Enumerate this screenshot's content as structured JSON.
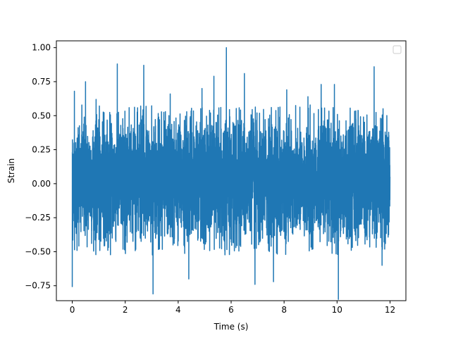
{
  "chart_data": {
    "type": "line",
    "title": "",
    "xlabel": "Time (s)",
    "ylabel": "Strain",
    "xlim": [
      -0.6,
      12.6
    ],
    "ylim": [
      -0.86,
      1.05
    ],
    "xticks": [
      0,
      2,
      4,
      6,
      8,
      10,
      12
    ],
    "xtick_labels": [
      "0",
      "2",
      "4",
      "6",
      "8",
      "10",
      "12"
    ],
    "yticks": [
      -0.75,
      -0.5,
      -0.25,
      0.0,
      0.25,
      0.5,
      0.75,
      1.0
    ],
    "ytick_labels": [
      "−0.75",
      "−0.50",
      "−0.25",
      "0.00",
      "0.25",
      "0.50",
      "0.75",
      "1.00"
    ],
    "grid": false,
    "legend": {
      "location": "top-right",
      "entries": []
    },
    "series": [
      {
        "color": "#1f77b4",
        "x_start": 0.0,
        "x_end": 12.0,
        "typical_range": [
          -0.45,
          0.5
        ],
        "notable_points": [
          {
            "x": 0.0,
            "y": -0.76
          },
          {
            "x": 0.08,
            "y": 0.68
          },
          {
            "x": 0.5,
            "y": 0.75
          },
          {
            "x": 0.9,
            "y": 0.62
          },
          {
            "x": 1.7,
            "y": 0.88
          },
          {
            "x": 2.7,
            "y": 0.87
          },
          {
            "x": 3.05,
            "y": -0.81
          },
          {
            "x": 3.7,
            "y": 0.66
          },
          {
            "x": 4.4,
            "y": -0.7
          },
          {
            "x": 4.9,
            "y": 0.7
          },
          {
            "x": 5.35,
            "y": 0.79
          },
          {
            "x": 5.82,
            "y": 1.0
          },
          {
            "x": 6.5,
            "y": 0.81
          },
          {
            "x": 6.9,
            "y": -0.74
          },
          {
            "x": 7.6,
            "y": -0.72
          },
          {
            "x": 8.1,
            "y": 0.69
          },
          {
            "x": 8.9,
            "y": 0.64
          },
          {
            "x": 9.4,
            "y": 0.73
          },
          {
            "x": 9.9,
            "y": 0.73
          },
          {
            "x": 10.05,
            "y": -0.85
          },
          {
            "x": 11.4,
            "y": 0.86
          },
          {
            "x": 11.7,
            "y": -0.6
          },
          {
            "x": 12.0,
            "y": 0.05
          }
        ]
      }
    ]
  }
}
